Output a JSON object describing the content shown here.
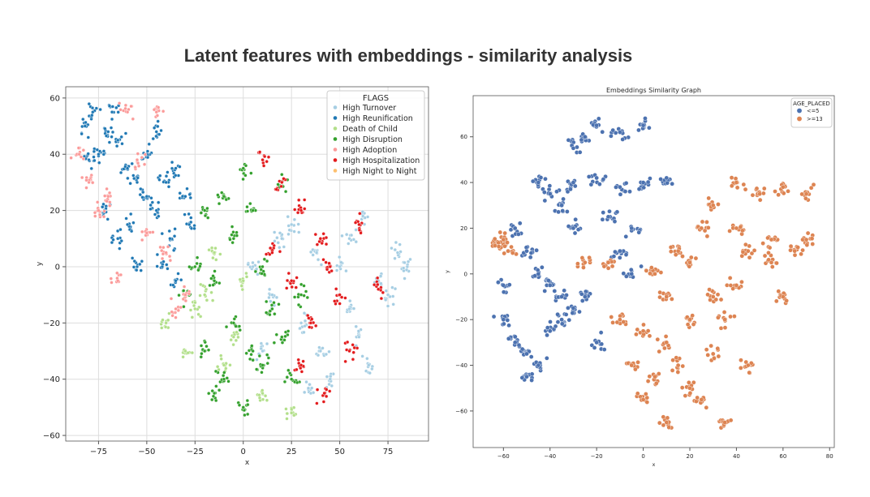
{
  "page": {
    "title": "Latent features with embeddings - similarity analysis"
  },
  "chart_data": [
    {
      "type": "scatter",
      "title": "",
      "xlabel": "x",
      "ylabel": "y",
      "xlim": [
        -92,
        96
      ],
      "ylim": [
        -62,
        64
      ],
      "xticks": [
        -75,
        -50,
        -25,
        0,
        25,
        50,
        75
      ],
      "xtick_labels": [
        "−75",
        "−50",
        "−25",
        "0",
        "25",
        "50",
        "75"
      ],
      "yticks": [
        60,
        40,
        20,
        0,
        -20,
        -40,
        -60
      ],
      "ytick_labels": [
        "60",
        "40",
        "20",
        "0",
        "−20",
        "−40",
        "−60"
      ],
      "grid": true,
      "legend": {
        "title": "FLAGS",
        "position": "top-right"
      },
      "series": [
        {
          "name": "High Turnover",
          "color": "#a6cee3",
          "points": [
            [
              55,
              -15
            ],
            [
              60,
              -25
            ],
            [
              45,
              -40
            ],
            [
              70,
              -5
            ],
            [
              80,
              5
            ],
            [
              30,
              -20
            ],
            [
              20,
              10
            ],
            [
              40,
              -30
            ],
            [
              65,
              -35
            ],
            [
              35,
              -45
            ],
            [
              50,
              0
            ],
            [
              75,
              -10
            ],
            [
              85,
              0
            ],
            [
              15,
              -10
            ],
            [
              25,
              15
            ],
            [
              55,
              10
            ],
            [
              62,
              18
            ],
            [
              10,
              -30
            ],
            [
              5,
              0
            ],
            [
              38,
              5
            ]
          ]
        },
        {
          "name": "High Reunification",
          "color": "#1f78b4",
          "points": [
            [
              -82,
              50
            ],
            [
              -78,
              55
            ],
            [
              -70,
              48
            ],
            [
              -75,
              40
            ],
            [
              -65,
              45
            ],
            [
              -60,
              35
            ],
            [
              -55,
              30
            ],
            [
              -50,
              25
            ],
            [
              -72,
              20
            ],
            [
              -65,
              10
            ],
            [
              -60,
              15
            ],
            [
              -45,
              20
            ],
            [
              -40,
              30
            ],
            [
              -35,
              35
            ],
            [
              -30,
              25
            ],
            [
              -38,
              10
            ],
            [
              -42,
              0
            ],
            [
              -35,
              -5
            ],
            [
              -55,
              0
            ],
            [
              -80,
              38
            ],
            [
              -68,
              55
            ],
            [
              -50,
              40
            ],
            [
              -28,
              15
            ],
            [
              -45,
              48
            ]
          ]
        },
        {
          "name": "Death of Child",
          "color": "#b2df8a",
          "points": [
            [
              -30,
              -30
            ],
            [
              -20,
              -10
            ],
            [
              -5,
              -25
            ],
            [
              10,
              -45
            ],
            [
              25,
              -52
            ],
            [
              -25,
              -15
            ],
            [
              -10,
              -35
            ],
            [
              0,
              -5
            ],
            [
              -15,
              5
            ],
            [
              -40,
              -20
            ]
          ]
        },
        {
          "name": "High Disruption",
          "color": "#33a02c",
          "points": [
            [
              -20,
              -30
            ],
            [
              -10,
              -40
            ],
            [
              0,
              -50
            ],
            [
              10,
              -35
            ],
            [
              20,
              -25
            ],
            [
              -15,
              -5
            ],
            [
              -5,
              10
            ],
            [
              5,
              20
            ],
            [
              0,
              35
            ],
            [
              -10,
              25
            ],
            [
              15,
              -15
            ],
            [
              30,
              -10
            ],
            [
              -25,
              0
            ],
            [
              -5,
              -20
            ],
            [
              10,
              0
            ],
            [
              25,
              -40
            ],
            [
              -15,
              -45
            ],
            [
              5,
              -30
            ],
            [
              -30,
              -10
            ],
            [
              20,
              30
            ],
            [
              -20,
              20
            ]
          ]
        },
        {
          "name": "High Adoption",
          "color": "#fb9a99",
          "points": [
            [
              -85,
              40
            ],
            [
              -80,
              30
            ],
            [
              -75,
              20
            ],
            [
              -65,
              -5
            ],
            [
              -55,
              38
            ],
            [
              -50,
              12
            ],
            [
              -45,
              55
            ],
            [
              -40,
              5
            ],
            [
              -30,
              -10
            ],
            [
              -35,
              -15
            ],
            [
              -60,
              55
            ],
            [
              -70,
              25
            ]
          ]
        },
        {
          "name": "High Hospitalization",
          "color": "#e31a1c",
          "points": [
            [
              10,
              38
            ],
            [
              20,
              30
            ],
            [
              30,
              20
            ],
            [
              40,
              10
            ],
            [
              45,
              0
            ],
            [
              50,
              -10
            ],
            [
              35,
              -20
            ],
            [
              30,
              -35
            ],
            [
              55,
              -30
            ],
            [
              70,
              -8
            ],
            [
              15,
              5
            ],
            [
              25,
              -5
            ],
            [
              42,
              -45
            ],
            [
              60,
              15
            ]
          ]
        },
        {
          "name": "High Night to Night",
          "color": "#fdbf6f",
          "points": []
        }
      ]
    },
    {
      "type": "scatter",
      "title": "Embeddings Similarity Graph",
      "xlabel": "x",
      "ylabel": "y",
      "xlim": [
        -73,
        82
      ],
      "ylim": [
        -76,
        78
      ],
      "xticks": [
        -60,
        -40,
        -20,
        0,
        20,
        40,
        60,
        80
      ],
      "xtick_labels": [
        "−60",
        "−40",
        "−20",
        "0",
        "20",
        "40",
        "60",
        "80"
      ],
      "yticks": [
        60,
        40,
        20,
        0,
        -20,
        -40,
        -60
      ],
      "ytick_labels": [
        "60",
        "40",
        "20",
        "0",
        "−20",
        "−40",
        "−60"
      ],
      "grid": false,
      "legend": {
        "title": "AGE_PLACED",
        "position": "top-right"
      },
      "series": [
        {
          "name": "<=5",
          "color": "#4c72b0",
          "points": [
            [
              -25,
              60
            ],
            [
              -30,
              55
            ],
            [
              -20,
              65
            ],
            [
              -10,
              62
            ],
            [
              0,
              65
            ],
            [
              -45,
              40
            ],
            [
              -40,
              35
            ],
            [
              -35,
              30
            ],
            [
              -30,
              40
            ],
            [
              -20,
              42
            ],
            [
              -10,
              38
            ],
            [
              0,
              40
            ],
            [
              10,
              42
            ],
            [
              -55,
              20
            ],
            [
              -50,
              10
            ],
            [
              -45,
              0
            ],
            [
              -40,
              -5
            ],
            [
              -35,
              -10
            ],
            [
              -30,
              -15
            ],
            [
              -60,
              -20
            ],
            [
              -55,
              -30
            ],
            [
              -50,
              -35
            ],
            [
              -45,
              -40
            ],
            [
              -40,
              -25
            ],
            [
              -35,
              -20
            ],
            [
              -25,
              -10
            ],
            [
              -20,
              -30
            ],
            [
              -15,
              25
            ],
            [
              -5,
              20
            ],
            [
              -10,
              10
            ],
            [
              -5,
              0
            ],
            [
              -60,
              -5
            ],
            [
              -30,
              20
            ],
            [
              -50,
              -45
            ]
          ]
        },
        {
          "name": ">=13",
          "color": "#dd8452",
          "points": [
            [
              -60,
              15
            ],
            [
              -62,
              12
            ],
            [
              -58,
              10
            ],
            [
              10,
              -30
            ],
            [
              15,
              -40
            ],
            [
              20,
              -50
            ],
            [
              25,
              -55
            ],
            [
              30,
              -35
            ],
            [
              35,
              -20
            ],
            [
              20,
              -20
            ],
            [
              10,
              -10
            ],
            [
              5,
              0
            ],
            [
              15,
              10
            ],
            [
              25,
              20
            ],
            [
              20,
              5
            ],
            [
              30,
              -10
            ],
            [
              40,
              -5
            ],
            [
              45,
              10
            ],
            [
              55,
              15
            ],
            [
              65,
              10
            ],
            [
              70,
              15
            ],
            [
              50,
              35
            ],
            [
              60,
              38
            ],
            [
              70,
              35
            ],
            [
              40,
              40
            ],
            [
              30,
              30
            ],
            [
              -5,
              -40
            ],
            [
              -10,
              -20
            ],
            [
              0,
              -55
            ],
            [
              10,
              -65
            ],
            [
              35,
              -65
            ],
            [
              5,
              -45
            ],
            [
              0,
              -25
            ],
            [
              -15,
              5
            ],
            [
              45,
              -40
            ],
            [
              -25,
              5
            ],
            [
              40,
              20
            ],
            [
              55,
              5
            ],
            [
              60,
              -10
            ]
          ]
        }
      ]
    }
  ]
}
